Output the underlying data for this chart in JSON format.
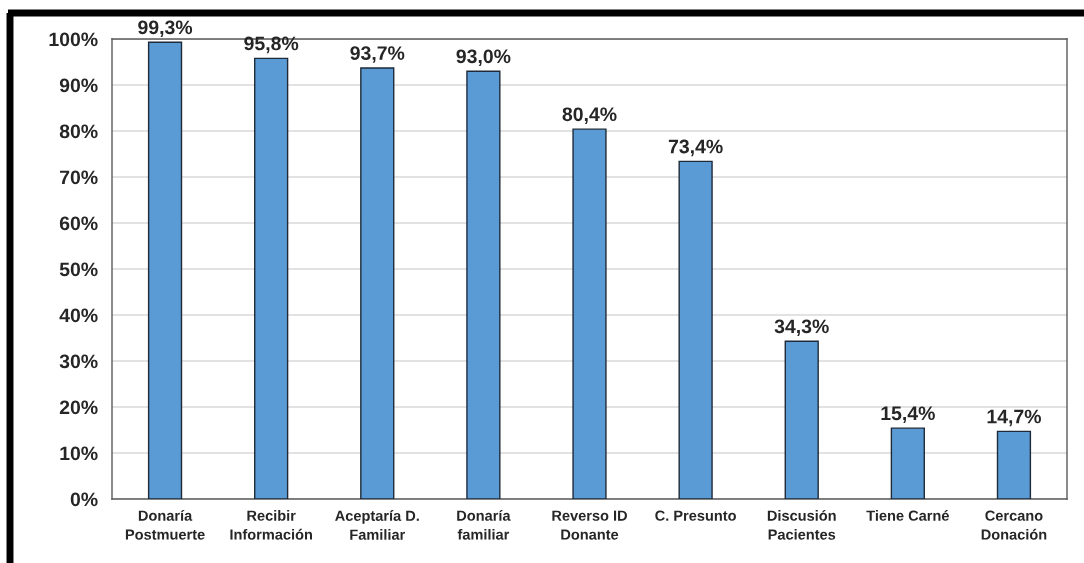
{
  "chart_data": {
    "type": "bar",
    "categories": [
      "Donaría\nPostmuerte",
      "Recibir\nInformación",
      "Aceptaría D.\nFamiliar",
      "Donaría\nfamiliar",
      "Reverso ID\nDonante",
      "C. Presunto",
      "Discusión\nPacientes",
      "Tiene Carné",
      "Cercano\nDonación"
    ],
    "values": [
      99.3,
      95.8,
      93.7,
      93.0,
      80.4,
      73.4,
      34.3,
      15.4,
      14.7
    ],
    "value_labels": [
      "99,3%",
      "95,8%",
      "93,7%",
      "93,0%",
      "80,4%",
      "73,4%",
      "34,3%",
      "15,4%",
      "14,7%"
    ],
    "color": "#5b9bd5",
    "ylim": [
      0,
      100
    ],
    "yticks": [
      {
        "value": 0,
        "label": "0%"
      },
      {
        "value": 10,
        "label": "10%"
      },
      {
        "value": 20,
        "label": "20%"
      },
      {
        "value": 30,
        "label": "30%"
      },
      {
        "value": 40,
        "label": "40%"
      },
      {
        "value": 50,
        "label": "50%"
      },
      {
        "value": 60,
        "label": "60%"
      },
      {
        "value": 70,
        "label": "70%"
      },
      {
        "value": 80,
        "label": "80%"
      },
      {
        "value": 90,
        "label": "90%"
      },
      {
        "value": 100,
        "label": "100%"
      }
    ],
    "grid": "y",
    "legend": false
  }
}
